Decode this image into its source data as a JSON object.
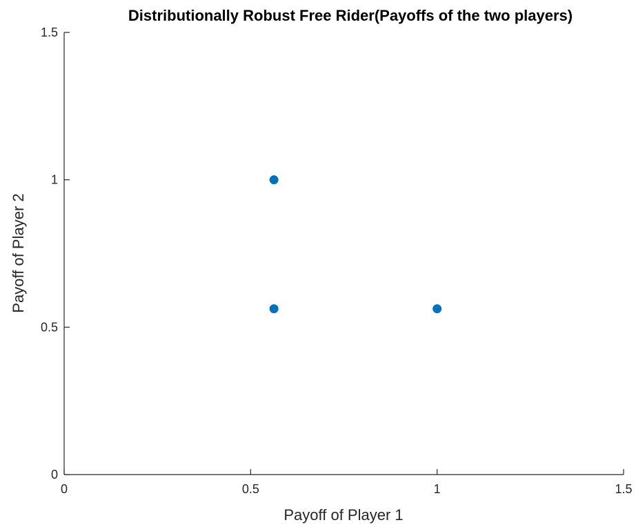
{
  "chart_data": {
    "type": "scatter",
    "title": "Distributionally Robust Free Rider(Payoffs of the two players)",
    "xlabel": "Payoff of Player 1",
    "ylabel": "Payoff of Player 2",
    "xlim": [
      0,
      1.5
    ],
    "ylim": [
      0,
      1.5
    ],
    "xticks": [
      0,
      0.5,
      1,
      1.5
    ],
    "yticks": [
      0,
      0.5,
      1,
      1.5
    ],
    "xtick_labels": [
      "0",
      "0.5",
      "1",
      "1.5"
    ],
    "ytick_labels": [
      "0",
      "0.5",
      "1",
      "1.5"
    ],
    "grid": false,
    "series": [
      {
        "color": "#0072BD",
        "points": [
          {
            "x": 0.5625,
            "y": 1.0
          },
          {
            "x": 0.5625,
            "y": 0.5625
          },
          {
            "x": 1.0,
            "y": 0.5625
          }
        ]
      }
    ]
  }
}
